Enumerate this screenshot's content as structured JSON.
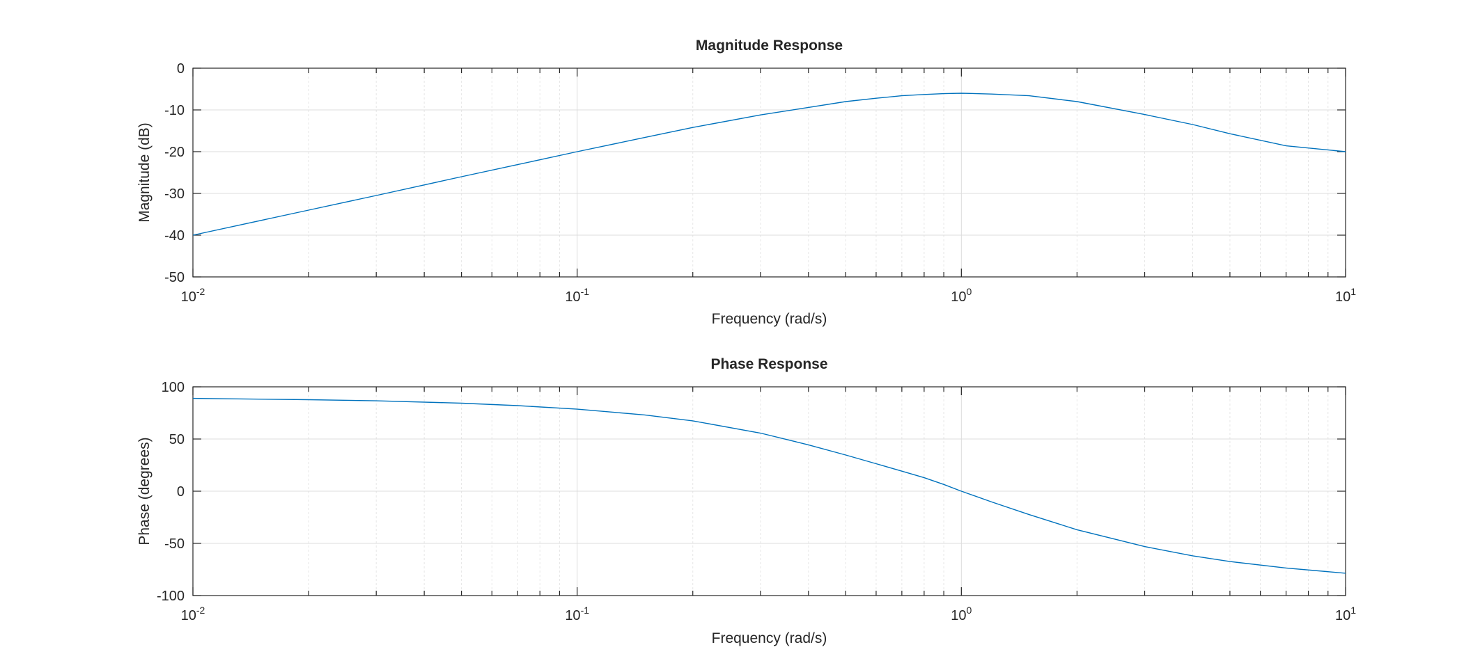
{
  "chart_data": [
    {
      "type": "line",
      "title": "Magnitude Response",
      "xlabel": "Frequency (rad/s)",
      "ylabel": "Magnitude (dB)",
      "xscale": "log",
      "xlim": [
        0.01,
        10
      ],
      "ylim": [
        -50,
        0
      ],
      "xticks": [
        0.01,
        0.1,
        1,
        10
      ],
      "xtick_labels": [
        {
          "base": "10",
          "exp": "-2"
        },
        {
          "base": "10",
          "exp": "-1"
        },
        {
          "base": "10",
          "exp": "0"
        },
        {
          "base": "10",
          "exp": "1"
        }
      ],
      "yticks": [
        0,
        -10,
        -20,
        -30,
        -40,
        -50
      ],
      "ytick_labels": [
        "0",
        "-10",
        "-20",
        "-30",
        "-40",
        "-50"
      ],
      "grid": true,
      "series": [
        {
          "color": "#0072bd",
          "x": [
            0.01,
            0.02,
            0.03,
            0.05,
            0.07,
            0.1,
            0.15,
            0.2,
            0.3,
            0.4,
            0.5,
            0.6,
            0.7,
            0.8,
            0.9,
            1,
            1.2,
            1.5,
            2,
            3,
            4,
            5,
            7,
            10
          ],
          "y": [
            -40.0,
            -34.0,
            -30.5,
            -26.0,
            -23.1,
            -20.0,
            -16.6,
            -14.2,
            -11.2,
            -9.4,
            -8.0,
            -7.2,
            -6.6,
            -6.3,
            -6.1,
            -6.0,
            -6.2,
            -6.6,
            -8.0,
            -11.1,
            -13.5,
            -15.7,
            -18.6,
            -20.0
          ]
        }
      ]
    },
    {
      "type": "line",
      "title": "Phase Response",
      "xlabel": "Frequency (rad/s)",
      "ylabel": "Phase (degrees)",
      "xscale": "log",
      "xlim": [
        0.01,
        10
      ],
      "ylim": [
        -100,
        100
      ],
      "xticks": [
        0.01,
        0.1,
        1,
        10
      ],
      "xtick_labels": [
        {
          "base": "10",
          "exp": "-2"
        },
        {
          "base": "10",
          "exp": "-1"
        },
        {
          "base": "10",
          "exp": "0"
        },
        {
          "base": "10",
          "exp": "1"
        }
      ],
      "yticks": [
        100,
        50,
        0,
        -50,
        -100
      ],
      "ytick_labels": [
        "100",
        "50",
        "0",
        "-50",
        "-100"
      ],
      "grid": true,
      "series": [
        {
          "color": "#0072bd",
          "x": [
            0.01,
            0.02,
            0.03,
            0.05,
            0.07,
            0.1,
            0.15,
            0.2,
            0.3,
            0.4,
            0.5,
            0.6,
            0.7,
            0.8,
            0.9,
            1,
            1.2,
            1.5,
            2,
            3,
            4,
            5,
            7,
            10
          ],
          "y": [
            88.9,
            87.7,
            86.6,
            84.3,
            82.0,
            78.6,
            73.1,
            67.4,
            55.7,
            44.4,
            34.7,
            26.3,
            19.2,
            12.9,
            6.5,
            0.0,
            -10.3,
            -22.4,
            -36.9,
            -53.1,
            -61.9,
            -67.4,
            -73.6,
            -78.6
          ]
        }
      ]
    }
  ]
}
